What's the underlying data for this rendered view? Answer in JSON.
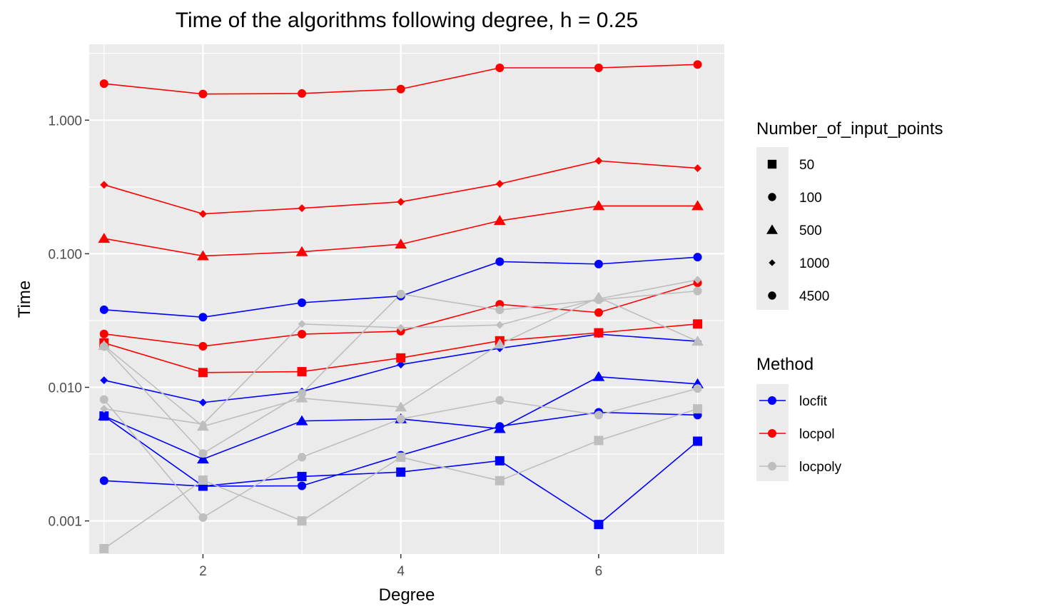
{
  "chart_data": {
    "type": "line",
    "title": "Time of the algorithms following degree, h = 0.25",
    "xlabel": "Degree",
    "ylabel": "Time",
    "yscale": "log10",
    "grid": true,
    "xlim": [
      0.85,
      7.27
    ],
    "ylim": [
      0.000565,
      3.7
    ],
    "x_ticks": [
      2,
      4,
      6
    ],
    "x_tick_labels": [
      "2",
      "4",
      "6"
    ],
    "y_ticks": [
      0.001,
      0.01,
      0.1,
      1
    ],
    "y_tick_labels": [
      "0.001",
      "0.010",
      "0.100",
      "1.000"
    ],
    "x": [
      1,
      2,
      3,
      4,
      5,
      6,
      7
    ],
    "legends": {
      "shape": {
        "title": "Number_of_input_points",
        "entries": [
          {
            "label": "50",
            "shape": "square"
          },
          {
            "label": "100",
            "shape": "circle"
          },
          {
            "label": "500",
            "shape": "triangle"
          },
          {
            "label": "1000",
            "shape": "diamond"
          },
          {
            "label": "4500",
            "shape": "circle"
          }
        ]
      },
      "color": {
        "title": "Method",
        "entries": [
          {
            "label": "locfit",
            "color": "#0000ff"
          },
          {
            "label": "locpol",
            "color": "#ff0000"
          },
          {
            "label": "locpoly",
            "color": "#bebebe"
          }
        ]
      }
    },
    "series": [
      {
        "method": "locfit",
        "points": "50",
        "shape": "square",
        "color": "#0000ff",
        "values": [
          0.0061,
          0.00182,
          0.00215,
          0.00232,
          0.00282,
          0.00094,
          0.00395
        ]
      },
      {
        "method": "locfit",
        "points": "100",
        "shape": "circle",
        "color": "#0000ff",
        "values": [
          0.002,
          0.00182,
          0.00183,
          0.0031,
          0.0051,
          0.0065,
          0.0062
        ]
      },
      {
        "method": "locfit",
        "points": "500",
        "shape": "triangle",
        "color": "#0000ff",
        "values": [
          0.0061,
          0.0029,
          0.0056,
          0.0058,
          0.0049,
          0.012,
          0.0106
        ]
      },
      {
        "method": "locfit",
        "points": "1000",
        "shape": "diamond",
        "color": "#0000ff",
        "values": [
          0.0113,
          0.0077,
          0.0093,
          0.0148,
          0.0196,
          0.025,
          0.0221
        ]
      },
      {
        "method": "locfit",
        "points": "4500",
        "shape": "circle",
        "color": "#0000ff",
        "values": [
          0.0381,
          0.0335,
          0.043,
          0.0482,
          0.0873,
          0.0837,
          0.0943
        ]
      },
      {
        "method": "locpol",
        "points": "50",
        "shape": "square",
        "color": "#ff0000",
        "values": [
          0.0215,
          0.0129,
          0.0131,
          0.0166,
          0.0223,
          0.0256,
          0.0298
        ]
      },
      {
        "method": "locpol",
        "points": "100",
        "shape": "circle",
        "color": "#ff0000",
        "values": [
          0.0251,
          0.0203,
          0.025,
          0.0263,
          0.0418,
          0.0363,
          0.0606
        ]
      },
      {
        "method": "locpol",
        "points": "500",
        "shape": "triangle",
        "color": "#ff0000",
        "values": [
          0.13,
          0.0963,
          0.1034,
          0.1178,
          0.1767,
          0.2281,
          0.2281
        ]
      },
      {
        "method": "locpol",
        "points": "1000",
        "shape": "diamond",
        "color": "#ff0000",
        "values": [
          0.3283,
          0.1988,
          0.2192,
          0.2447,
          0.3338,
          0.4962,
          0.437
        ]
      },
      {
        "method": "locpol",
        "points": "4500",
        "shape": "circle",
        "color": "#ff0000",
        "values": [
          1.877,
          1.57,
          1.584,
          1.709,
          2.465,
          2.465,
          2.611
        ]
      },
      {
        "method": "locpoly",
        "points": "50",
        "shape": "square",
        "color": "#bebebe",
        "values": [
          0.00062,
          0.00202,
          0.001,
          0.003,
          0.002,
          0.004,
          0.0069
        ]
      },
      {
        "method": "locpoly",
        "points": "100",
        "shape": "circle",
        "color": "#bebebe",
        "values": [
          0.0081,
          0.00106,
          0.003,
          0.0058,
          0.008,
          0.0062,
          0.0098
        ]
      },
      {
        "method": "locpoly",
        "points": "500",
        "shape": "triangle",
        "color": "#bebebe",
        "values": [
          0.0205,
          0.0051,
          0.0083,
          0.0071,
          0.021,
          0.0471,
          0.0221
        ]
      },
      {
        "method": "locpoly",
        "points": "1000",
        "shape": "diamond",
        "color": "#bebebe",
        "values": [
          0.0069,
          0.0053,
          0.0298,
          0.0279,
          0.0293,
          0.046,
          0.0638
        ]
      },
      {
        "method": "locpoly",
        "points": "4500",
        "shape": "circle",
        "color": "#bebebe",
        "values": [
          0.0202,
          0.0032,
          0.009,
          0.0499,
          0.038,
          0.0452,
          0.0526
        ]
      }
    ]
  }
}
